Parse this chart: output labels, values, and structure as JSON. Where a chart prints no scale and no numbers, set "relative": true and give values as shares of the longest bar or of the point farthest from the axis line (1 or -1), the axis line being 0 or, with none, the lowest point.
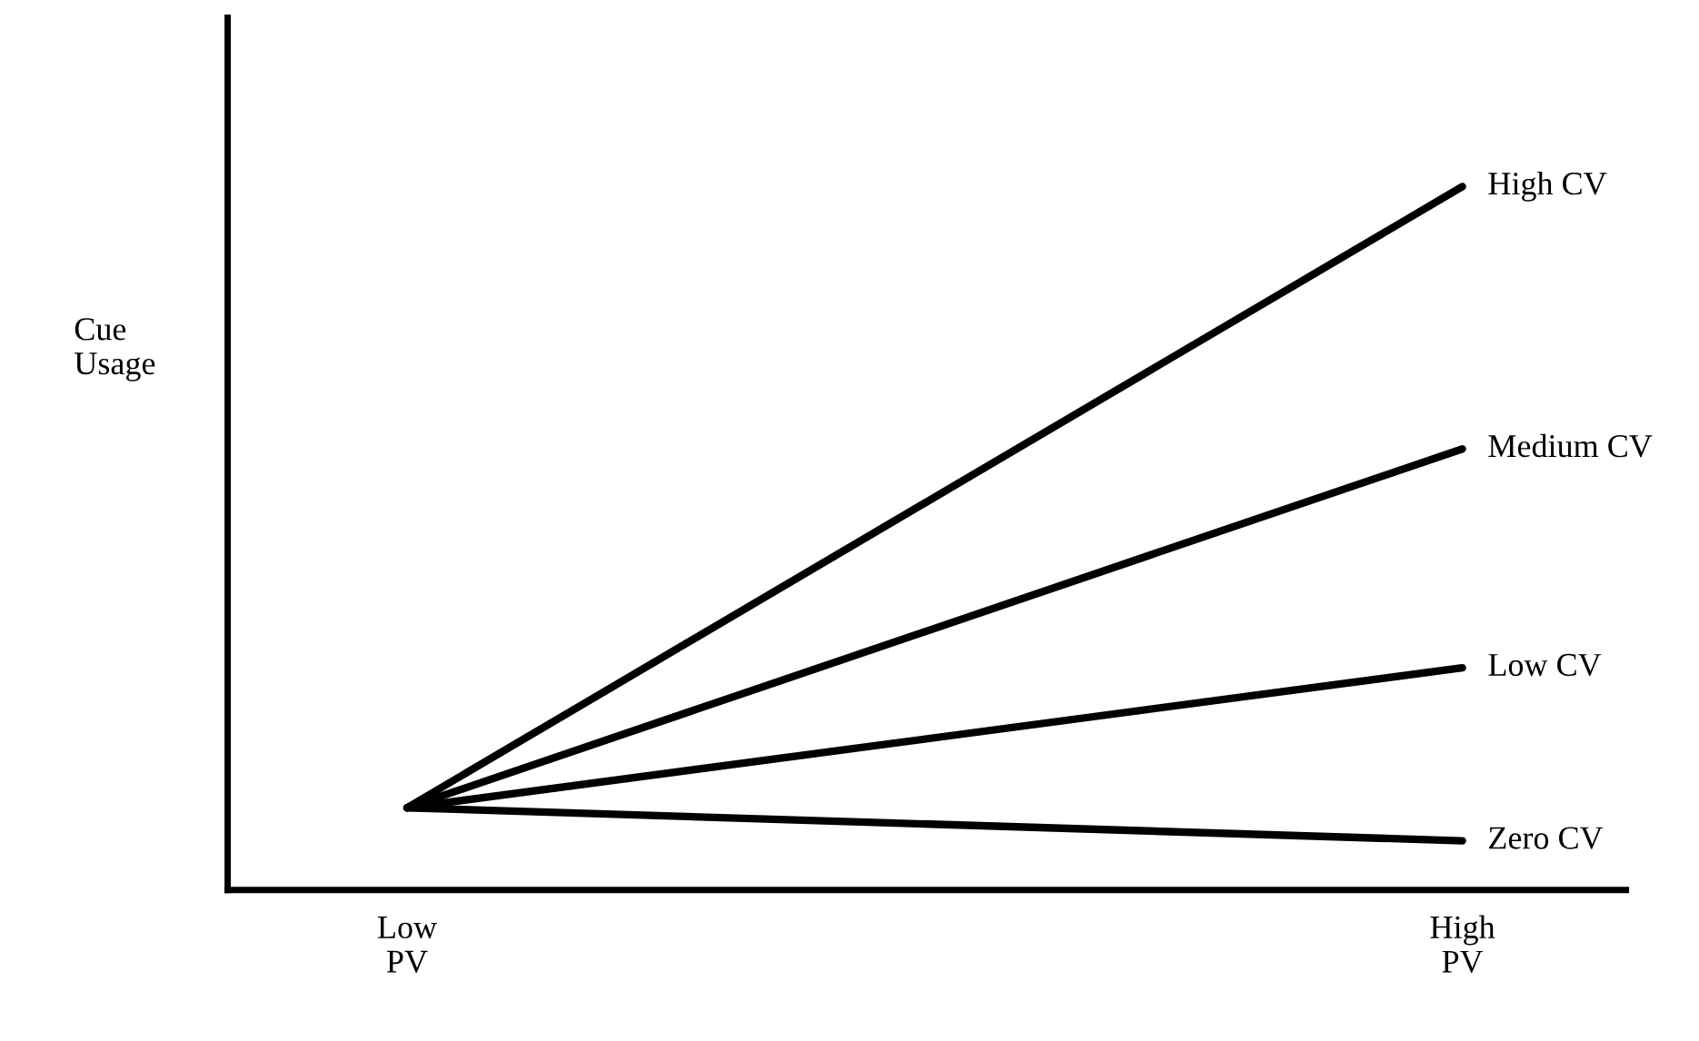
{
  "chart_data": {
    "type": "line",
    "relative": true,
    "ylabel": "Cue\nUsage",
    "categories": [
      "Low\nPV",
      "High\nPV"
    ],
    "series": [
      {
        "name": "High CV",
        "color": "#000000",
        "values": [
          0.117,
          1
        ]
      },
      {
        "name": "Medium CV",
        "color": "#000000",
        "values": [
          0.117,
          0.627
        ]
      },
      {
        "name": "Low CV",
        "color": "#000000",
        "values": [
          0.117,
          0.316
        ]
      },
      {
        "name": "Zero CV",
        "color": "#000000",
        "values": [
          0.117,
          0.07
        ]
      }
    ],
    "grid": false,
    "line_style": "solid",
    "marker": "none"
  }
}
